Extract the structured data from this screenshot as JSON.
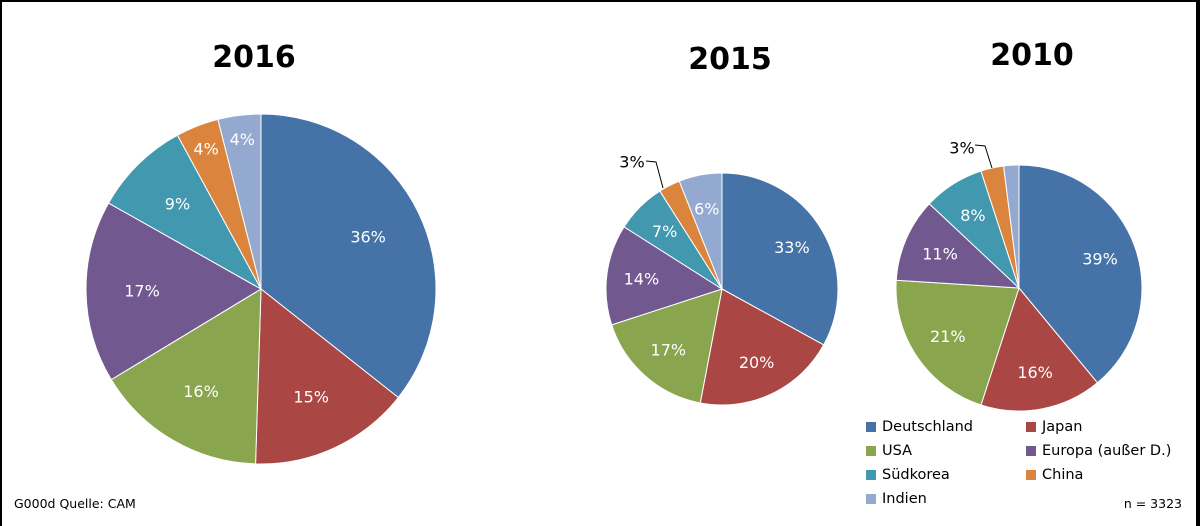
{
  "chart_data": [
    {
      "type": "pie",
      "title": "2016",
      "categories": [
        "Deutschland",
        "Japan",
        "USA",
        "Europa (außer D.)",
        "Südkorea",
        "China",
        "Indien"
      ],
      "values": [
        36,
        15,
        16,
        17,
        9,
        4,
        4
      ],
      "labels": [
        "36%",
        "15%",
        "16%",
        "17%",
        "9%",
        "4%",
        "4%"
      ]
    },
    {
      "type": "pie",
      "title": "2015",
      "categories": [
        "Deutschland",
        "Japan",
        "USA",
        "Europa (außer D.)",
        "Südkorea",
        "China",
        "Indien"
      ],
      "values": [
        33,
        20,
        17,
        14,
        7,
        3,
        6
      ],
      "labels": [
        "33%",
        "20%",
        "17%",
        "14%",
        "7%",
        "3%",
        "6%"
      ]
    },
    {
      "type": "pie",
      "title": "2010",
      "categories": [
        "Deutschland",
        "Japan",
        "USA",
        "Europa (außer D.)",
        "Südkorea",
        "China",
        "Indien"
      ],
      "values": [
        39,
        16,
        21,
        11,
        8,
        3,
        2
      ],
      "labels": [
        "39%",
        "16%",
        "21%",
        "11%",
        "8%",
        "3%",
        ""
      ]
    }
  ],
  "legend": [
    {
      "label": "Deutschland",
      "color": "#4572A7"
    },
    {
      "label": "Japan",
      "color": "#AA4643"
    },
    {
      "label": "USA",
      "color": "#89A54E"
    },
    {
      "label": "Europa (außer D.)",
      "color": "#71588F"
    },
    {
      "label": "Südkorea",
      "color": "#4198AF"
    },
    {
      "label": "China",
      "color": "#DB843D"
    },
    {
      "label": "Indien",
      "color": "#93A9CF"
    }
  ],
  "footer": {
    "source": "G000d  Quelle: CAM",
    "n": "n = 3323"
  }
}
